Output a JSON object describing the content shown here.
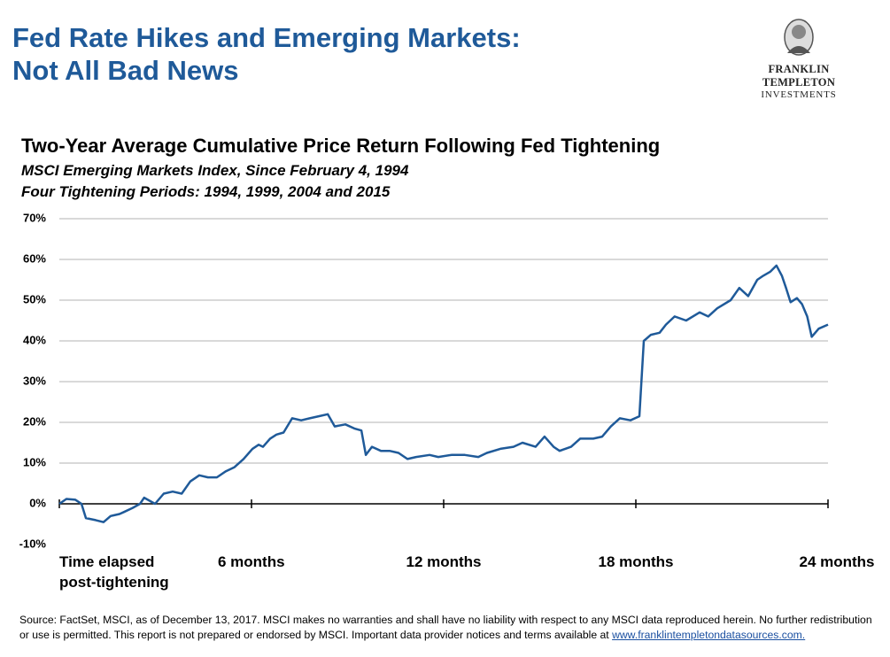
{
  "title_line1": "Fed Rate Hikes and Emerging Markets:",
  "title_line2": "Not All Bad News",
  "logo_line1": "FRANKLIN TEMPLETON",
  "logo_line2": "INVESTMENTS",
  "chart_data": {
    "type": "line",
    "title": "Two-Year Average Cumulative Price Return Following Fed Tightening",
    "subtitle1": "MSCI Emerging Markets Index, Since February 4, 1994",
    "subtitle2": "Four Tightening Periods: 1994, 1999, 2004 and 2015",
    "xlim": [
      0,
      24
    ],
    "xticks": [
      {
        "value": 0,
        "label": "Time elapsed post-tightening"
      },
      {
        "value": 6,
        "label": "6 months"
      },
      {
        "value": 12,
        "label": "12 months"
      },
      {
        "value": 18,
        "label": "18 months"
      },
      {
        "value": 24,
        "label": "24 months"
      }
    ],
    "ylim": [
      -10,
      70
    ],
    "yticks": [
      {
        "value": -10,
        "label": "-10%"
      },
      {
        "value": 0,
        "label": "0%"
      },
      {
        "value": 10,
        "label": "10%"
      },
      {
        "value": 20,
        "label": "20%"
      },
      {
        "value": 30,
        "label": "30%"
      },
      {
        "value": 40,
        "label": "40%"
      },
      {
        "value": 50,
        "label": "50%"
      },
      {
        "value": 60,
        "label": "60%"
      },
      {
        "value": 70,
        "label": "70%"
      }
    ],
    "grid": true,
    "color": "#1f5a99",
    "x": [
      0,
      0.22,
      0.5,
      0.69,
      0.83,
      1.13,
      1.38,
      1.6,
      1.88,
      2.02,
      2.29,
      2.52,
      2.65,
      2.99,
      3.26,
      3.54,
      3.82,
      4.09,
      4.37,
      4.64,
      4.92,
      5.2,
      5.47,
      5.75,
      6.03,
      6.22,
      6.36,
      6.58,
      6.78,
      7.0,
      7.27,
      7.55,
      7.82,
      8.1,
      8.38,
      8.6,
      8.93,
      9.21,
      9.43,
      9.57,
      9.76,
      10.04,
      10.31,
      10.59,
      10.87,
      11.14,
      11.56,
      11.83,
      12.24,
      12.66,
      13.08,
      13.35,
      13.77,
      14.18,
      14.46,
      14.87,
      15.15,
      15.43,
      15.62,
      15.98,
      16.26,
      16.67,
      16.95,
      17.22,
      17.5,
      17.83,
      18.11,
      18.25,
      18.47,
      18.74,
      18.94,
      19.21,
      19.57,
      19.99,
      20.26,
      20.54,
      20.96,
      21.23,
      21.51,
      21.79,
      21.98,
      22.2,
      22.39,
      22.56,
      22.69,
      22.83,
      23.03,
      23.19,
      23.35,
      23.49,
      23.71,
      24
    ],
    "values": [
      0,
      1.2,
      1,
      0,
      -3.5,
      -4,
      -4.5,
      -3,
      -2.5,
      -2,
      -1,
      0,
      1.5,
      0,
      2.5,
      3,
      2.5,
      5.5,
      7,
      6.5,
      6.5,
      8,
      9,
      11,
      13.5,
      14.5,
      14,
      16,
      17,
      17.5,
      21,
      20.5,
      21,
      21.5,
      22,
      19,
      19.5,
      18.5,
      18,
      12,
      14,
      13,
      13,
      12.5,
      11,
      11.5,
      12,
      11.5,
      12,
      12,
      11.5,
      12.5,
      13.5,
      14,
      15,
      14,
      16.5,
      14,
      13,
      14,
      16,
      16,
      16.5,
      19,
      21,
      20.5,
      21.5,
      40,
      41.5,
      42,
      44,
      46,
      45,
      47,
      46,
      48,
      50,
      53,
      51,
      55,
      56,
      57,
      58.5,
      56,
      53,
      49.5,
      50.5,
      49,
      46,
      41,
      43,
      44
    ]
  },
  "source": "Source: FactSet, MSCI, as of December 13, 2017. MSCI makes no warranties and shall have no liability with respect to any MSCI data reproduced herein. No further redistribution or use is permitted. This report is not prepared or endorsed by MSCI. Important data provider notices and terms available at ",
  "source_link": "www.franklintempletondatasources.com."
}
